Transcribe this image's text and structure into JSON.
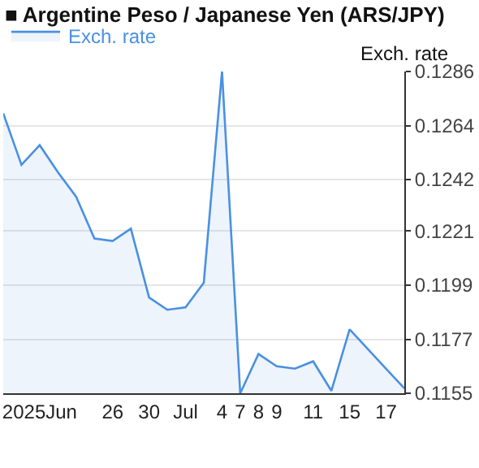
{
  "chart_data": {
    "type": "area",
    "title": "■ Argentine Peso / Japanese Yen (ARS/JPY)",
    "ylabel": "Exch. rate",
    "categories": [
      null,
      null,
      "2025Jun",
      null,
      null,
      null,
      "26",
      null,
      "30",
      null,
      "Jul",
      null,
      "4",
      "7",
      "8",
      "9",
      null,
      "11",
      null,
      "15",
      null,
      "17",
      null
    ],
    "series": [
      {
        "name": "Exch. rate",
        "color": "#4a90e2",
        "values": [
          0.1269,
          0.1248,
          0.1256,
          0.1245,
          0.1235,
          0.1218,
          0.1217,
          0.1222,
          0.1194,
          0.1189,
          0.119,
          0.12,
          0.1286,
          0.1155,
          0.1171,
          0.1166,
          0.1165,
          0.1168,
          0.1156,
          0.1181,
          0.1173,
          0.1165,
          0.1157
        ]
      }
    ],
    "ylim": [
      0.1155,
      0.1286
    ],
    "yticks": [
      0.1155,
      0.1177,
      0.1199,
      0.1221,
      0.1242,
      0.1264,
      0.1286
    ],
    "grid": "y",
    "legend": "top left",
    "marker": "none",
    "line_style": "solid"
  }
}
